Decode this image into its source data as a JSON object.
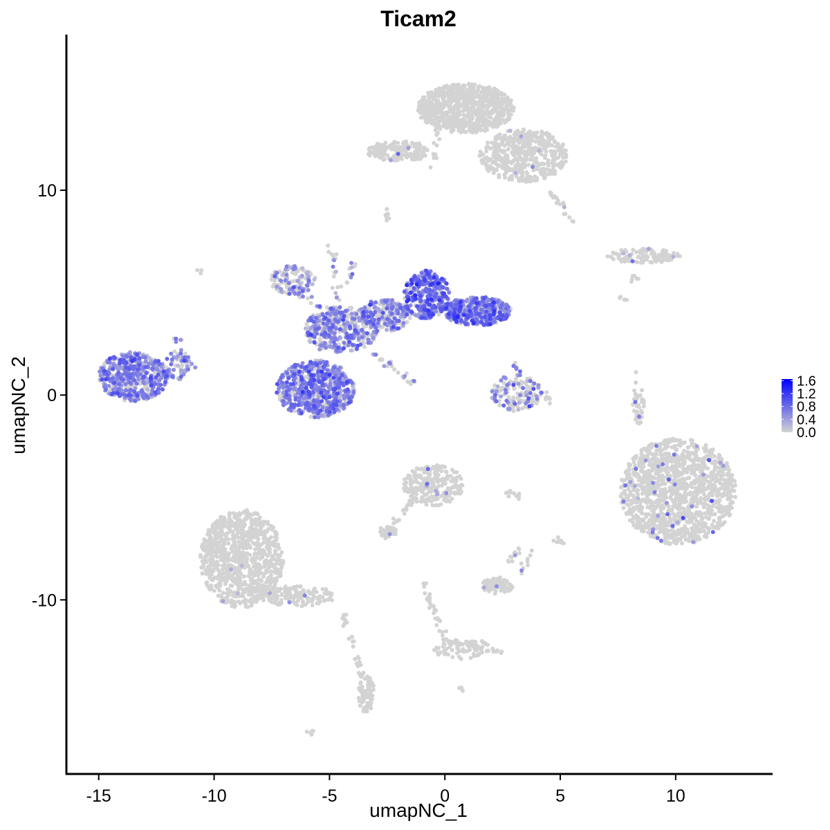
{
  "chart_data": {
    "type": "scatter",
    "title": "Ticam2",
    "xlabel": "umapNC_1",
    "ylabel": "umapNC_2",
    "x_ticks": [
      -15,
      -10,
      -5,
      0,
      5,
      10
    ],
    "x_tick_labels": [
      "-15",
      "-10",
      "-5",
      "0",
      "5",
      "10"
    ],
    "y_ticks": [
      10,
      0,
      -10
    ],
    "y_tick_labels": [
      "10",
      "0",
      "-10"
    ],
    "xlim": [
      -16.4,
      14.2
    ],
    "ylim": [
      -18.5,
      17.6
    ],
    "grid": false,
    "legend": {
      "placement": "right",
      "type": "colorbar",
      "labels": [
        "1.6",
        "1.2",
        "0.8",
        "0.4",
        "0.0"
      ],
      "values": [
        1.6,
        1.2,
        0.8,
        0.4,
        0.0
      ],
      "low_color": "#d3d3d3",
      "high_color": "#0000ff",
      "range": [
        0.0,
        1.65
      ]
    },
    "clusters": [
      {
        "cx": -13.5,
        "cy": 0.9,
        "rx": 1.5,
        "ry": 1.2,
        "n": 520,
        "expr_rate": 0.75,
        "expr_mean": 0.55
      },
      {
        "cx": -11.6,
        "cy": 1.5,
        "rx": 0.55,
        "ry": 0.8,
        "n": 70,
        "expr_rate": 0.6,
        "expr_mean": 0.5
      },
      {
        "cx": -5.6,
        "cy": 0.3,
        "rx": 1.7,
        "ry": 1.4,
        "n": 650,
        "expr_rate": 0.75,
        "expr_mean": 0.6
      },
      {
        "cx": -4.5,
        "cy": 3.2,
        "rx": 1.6,
        "ry": 1.1,
        "n": 380,
        "expr_rate": 0.6,
        "expr_mean": 0.55
      },
      {
        "cx": -6.6,
        "cy": 5.6,
        "rx": 1.0,
        "ry": 0.7,
        "n": 130,
        "expr_rate": 0.4,
        "expr_mean": 0.45
      },
      {
        "cx": -2.6,
        "cy": 3.9,
        "rx": 1.1,
        "ry": 0.8,
        "n": 200,
        "expr_rate": 0.55,
        "expr_mean": 0.55
      },
      {
        "cx": -0.8,
        "cy": 4.9,
        "rx": 1.0,
        "ry": 1.2,
        "n": 330,
        "expr_rate": 0.8,
        "expr_mean": 0.75
      },
      {
        "cx": 1.4,
        "cy": 4.1,
        "rx": 1.5,
        "ry": 0.7,
        "n": 400,
        "expr_rate": 0.75,
        "expr_mean": 0.7
      },
      {
        "cx": 3.1,
        "cy": 0.1,
        "rx": 1.1,
        "ry": 0.9,
        "n": 160,
        "expr_rate": 0.35,
        "expr_mean": 0.5
      },
      {
        "cx": 0.9,
        "cy": 14.0,
        "rx": 2.1,
        "ry": 1.2,
        "n": 800,
        "expr_rate": 0.0,
        "expr_mean": 0.0
      },
      {
        "cx": 3.4,
        "cy": 11.7,
        "rx": 1.9,
        "ry": 1.3,
        "n": 500,
        "expr_rate": 0.01,
        "expr_mean": 0.4
      },
      {
        "cx": -2.0,
        "cy": 11.9,
        "rx": 1.4,
        "ry": 0.5,
        "n": 180,
        "expr_rate": 0.01,
        "expr_mean": 0.5
      },
      {
        "cx": 8.6,
        "cy": 6.8,
        "rx": 1.6,
        "ry": 0.35,
        "n": 120,
        "expr_rate": 0.04,
        "expr_mean": 0.5
      },
      {
        "cx": 10.1,
        "cy": -4.7,
        "rx": 2.5,
        "ry": 2.6,
        "n": 1300,
        "expr_rate": 0.03,
        "expr_mean": 0.6
      },
      {
        "cx": -8.8,
        "cy": -8.0,
        "rx": 1.8,
        "ry": 2.4,
        "n": 900,
        "expr_rate": 0.005,
        "expr_mean": 0.5
      },
      {
        "cx": -6.4,
        "cy": -9.8,
        "rx": 1.7,
        "ry": 0.5,
        "n": 150,
        "expr_rate": 0.01,
        "expr_mean": 0.5
      },
      {
        "cx": -3.4,
        "cy": -14.6,
        "rx": 0.35,
        "ry": 0.9,
        "n": 80,
        "expr_rate": 0.0,
        "expr_mean": 0.0
      },
      {
        "cx": -0.5,
        "cy": -4.4,
        "rx": 1.3,
        "ry": 1.0,
        "n": 260,
        "expr_rate": 0.02,
        "expr_mean": 0.5
      },
      {
        "cx": 0.8,
        "cy": -12.4,
        "rx": 1.3,
        "ry": 0.5,
        "n": 70,
        "expr_rate": 0.0,
        "expr_mean": 0.0
      },
      {
        "cx": 2.3,
        "cy": -9.3,
        "rx": 0.7,
        "ry": 0.4,
        "n": 70,
        "expr_rate": 0.05,
        "expr_mean": 0.5
      },
      {
        "cx": -2.5,
        "cy": -6.7,
        "rx": 0.4,
        "ry": 0.3,
        "n": 30,
        "expr_rate": 0.08,
        "expr_mean": 0.5
      },
      {
        "cx": 8.4,
        "cy": -0.5,
        "rx": 0.25,
        "ry": 0.9,
        "n": 30,
        "expr_rate": 0.05,
        "expr_mean": 0.5
      }
    ],
    "trails": [
      {
        "x0": -10.6,
        "y0": 6.1,
        "x1": -10.5,
        "y1": 6.0,
        "n": 3,
        "expr_rate": 0.3
      },
      {
        "x0": -4.9,
        "y0": 7.3,
        "x1": -4.5,
        "y1": 3.5,
        "n": 25,
        "expr_rate": 0.4
      },
      {
        "x0": -5.5,
        "y0": 2.0,
        "x1": -3.9,
        "y1": 6.5,
        "n": 22,
        "expr_rate": 0.4
      },
      {
        "x0": -3.1,
        "y0": 2.0,
        "x1": -1.4,
        "y1": 0.6,
        "n": 24,
        "expr_rate": 0.4
      },
      {
        "x0": -6.5,
        "y0": 5.0,
        "x1": -4.2,
        "y1": 3.7,
        "n": 25,
        "expr_rate": 0.4
      },
      {
        "x0": -0.2,
        "y0": 14.0,
        "x1": -0.5,
        "y1": 11.0,
        "n": 20,
        "expr_rate": 0.0
      },
      {
        "x0": 4.5,
        "y0": 10.0,
        "x1": 5.6,
        "y1": 8.5,
        "n": 18,
        "expr_rate": 0.02
      },
      {
        "x0": -2.6,
        "y0": 9.0,
        "x1": -2.4,
        "y1": 8.5,
        "n": 8,
        "expr_rate": 0.0
      },
      {
        "x0": 8.0,
        "y0": 5.6,
        "x1": 8.4,
        "y1": 5.8,
        "n": 6,
        "expr_rate": 0.0
      },
      {
        "x0": 7.5,
        "y0": 4.9,
        "x1": 7.8,
        "y1": 4.5,
        "n": 5,
        "expr_rate": 0.0
      },
      {
        "x0": 8.2,
        "y0": 1.0,
        "x1": 8.5,
        "y1": -1.5,
        "n": 12,
        "expr_rate": 0.05
      },
      {
        "x0": -8.3,
        "y0": -9.5,
        "x1": -6.6,
        "y1": -9.6,
        "n": 18,
        "expr_rate": 0.0
      },
      {
        "x0": -4.4,
        "y0": -10.6,
        "x1": -3.5,
        "y1": -14.0,
        "n": 30,
        "expr_rate": 0.0
      },
      {
        "x0": -1.0,
        "y0": -4.5,
        "x1": -2.5,
        "y1": -6.8,
        "n": 25,
        "expr_rate": 0.0
      },
      {
        "x0": -0.9,
        "y0": -9.3,
        "x1": 0.0,
        "y1": -12.0,
        "n": 30,
        "expr_rate": 0.0
      },
      {
        "x0": 0.0,
        "y0": -12.0,
        "x1": 2.6,
        "y1": -12.6,
        "n": 30,
        "expr_rate": 0.0
      },
      {
        "x0": 2.7,
        "y0": -8.2,
        "x1": 3.3,
        "y1": -7.5,
        "n": 12,
        "expr_rate": 0.1
      },
      {
        "x0": 3.7,
        "y0": -7.5,
        "x1": 3.4,
        "y1": -8.8,
        "n": 10,
        "expr_rate": 0.2
      },
      {
        "x0": 2.6,
        "y0": -4.8,
        "x1": 3.3,
        "y1": -4.9,
        "n": 10,
        "expr_rate": 0.0
      },
      {
        "x0": 4.8,
        "y0": -7.1,
        "x1": 5.1,
        "y1": -7.3,
        "n": 8,
        "expr_rate": 0.0
      },
      {
        "x0": -5.7,
        "y0": -16.4,
        "x1": -5.9,
        "y1": -16.5,
        "n": 5,
        "expr_rate": 0.0
      },
      {
        "x0": 0.6,
        "y0": -14.3,
        "x1": 0.7,
        "y1": -14.4,
        "n": 4,
        "expr_rate": 0.0
      },
      {
        "x0": 3.0,
        "y0": 1.6,
        "x1": 3.2,
        "y1": 1.2,
        "n": 6,
        "expr_rate": 0.5
      },
      {
        "x0": 4.2,
        "y0": 0.2,
        "x1": 4.5,
        "y1": -0.4,
        "n": 8,
        "expr_rate": 0.2
      },
      {
        "x0": -11.8,
        "y0": 2.8,
        "x1": -11.3,
        "y1": 2.7,
        "n": 6,
        "expr_rate": 0.6
      },
      {
        "x0": -11.2,
        "y0": 1.4,
        "x1": -10.8,
        "y1": 1.4,
        "n": 5,
        "expr_rate": 0.4
      }
    ]
  }
}
